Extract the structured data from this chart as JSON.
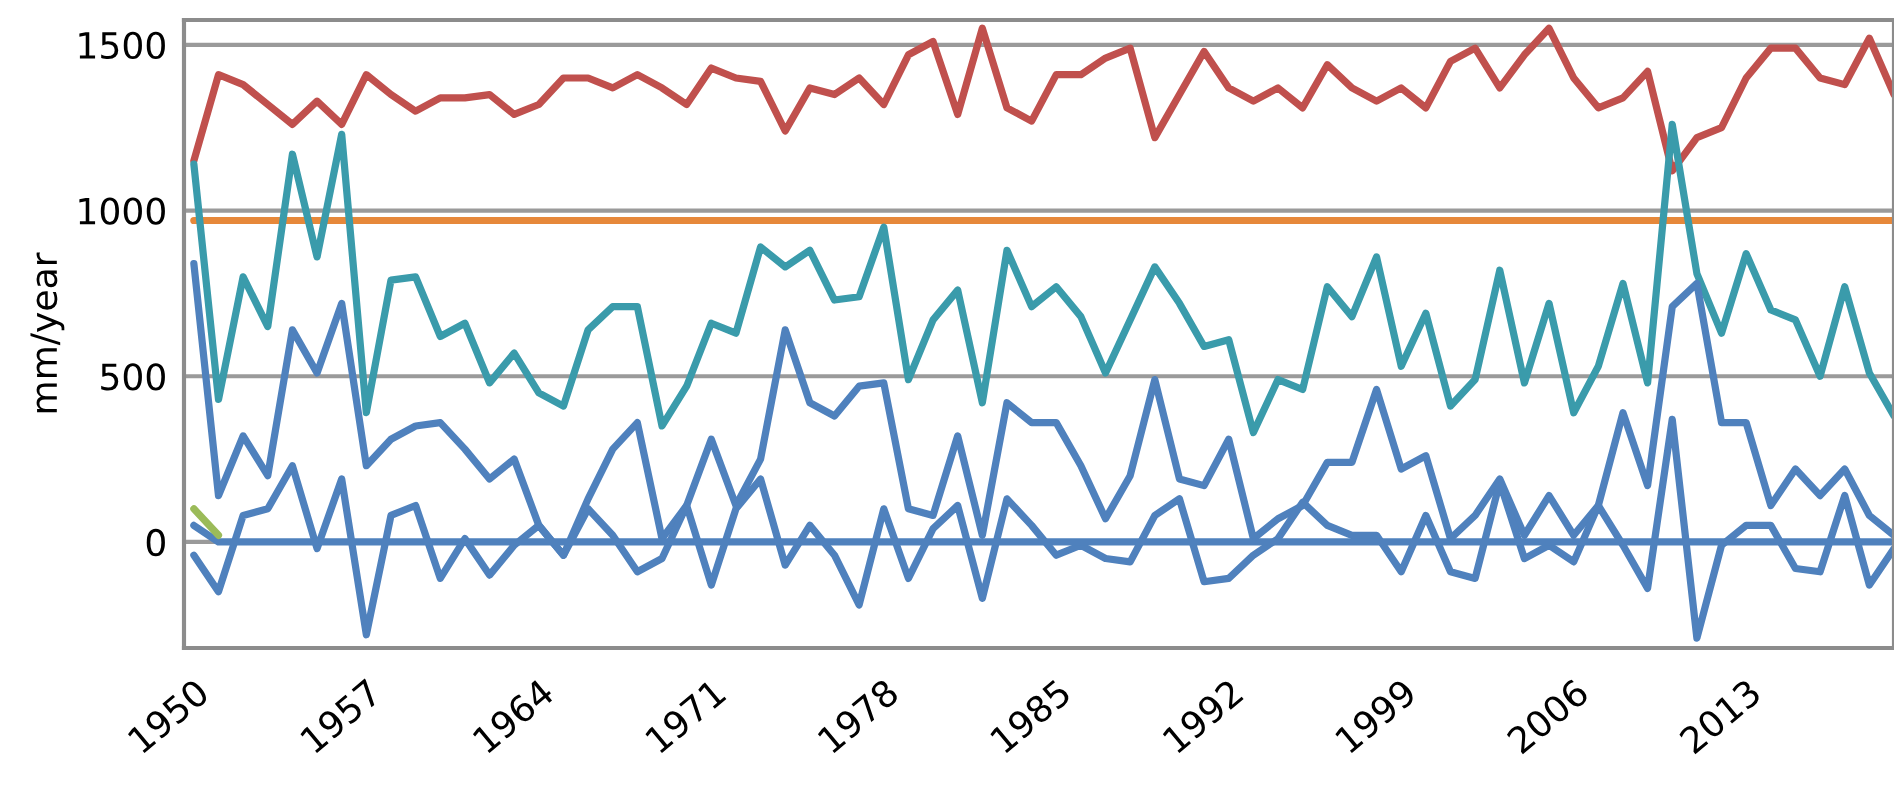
{
  "chart_data": {
    "type": "line",
    "ylabel": "mm/year",
    "x": [
      1950,
      1951,
      1952,
      1953,
      1954,
      1955,
      1956,
      1957,
      1958,
      1959,
      1960,
      1961,
      1962,
      1963,
      1964,
      1965,
      1966,
      1967,
      1968,
      1969,
      1970,
      1971,
      1972,
      1973,
      1974,
      1975,
      1976,
      1977,
      1978,
      1979,
      1980,
      1981,
      1982,
      1983,
      1984,
      1985,
      1986,
      1987,
      1988,
      1989,
      1990,
      1991,
      1992,
      1993,
      1994,
      1995,
      1996,
      1997,
      1998,
      1999,
      2000,
      2001,
      2002,
      2003,
      2004,
      2005,
      2006,
      2007,
      2008,
      2009,
      2010,
      2011,
      2012,
      2013,
      2014,
      2015,
      2016,
      2017,
      2018,
      2019
    ],
    "series": [
      {
        "color": "#c0504d",
        "values": [
          1150,
          1410,
          1380,
          1320,
          1260,
          1330,
          1260,
          1410,
          1350,
          1300,
          1340,
          1340,
          1350,
          1290,
          1320,
          1400,
          1400,
          1370,
          1410,
          1370,
          1320,
          1430,
          1400,
          1390,
          1240,
          1370,
          1350,
          1400,
          1320,
          1470,
          1510,
          1290,
          1550,
          1310,
          1270,
          1410,
          1410,
          1460,
          1490,
          1220,
          1350,
          1480,
          1370,
          1330,
          1370,
          1310,
          1440,
          1370,
          1330,
          1370,
          1310,
          1450,
          1490,
          1370,
          1470,
          1550,
          1400,
          1310,
          1340,
          1420,
          1120,
          1220,
          1250,
          1400,
          1490,
          1490,
          1400,
          1380,
          1520,
          1350
        ]
      },
      {
        "color": "#e6883a",
        "values": [
          970,
          970,
          970,
          970,
          970,
          970,
          970,
          970,
          970,
          970,
          970,
          970,
          970,
          970,
          970,
          970,
          970,
          970,
          970,
          970,
          970,
          970,
          970,
          970,
          970,
          970,
          970,
          970,
          970,
          970,
          970,
          970,
          970,
          970,
          970,
          970,
          970,
          970,
          970,
          970,
          970,
          970,
          970,
          970,
          970,
          970,
          970,
          970,
          970,
          970,
          970,
          970,
          970,
          970,
          970,
          970,
          970,
          970,
          970,
          970,
          970,
          970,
          970,
          970,
          970,
          970,
          970,
          970,
          970,
          970
        ]
      },
      {
        "color": "#3a9bab",
        "values": [
          1140,
          430,
          800,
          650,
          1170,
          860,
          1230,
          390,
          790,
          800,
          620,
          660,
          480,
          570,
          450,
          410,
          640,
          710,
          710,
          350,
          470,
          660,
          630,
          890,
          830,
          880,
          730,
          740,
          950,
          490,
          670,
          760,
          420,
          880,
          710,
          770,
          680,
          510,
          670,
          830,
          720,
          590,
          610,
          330,
          490,
          460,
          770,
          680,
          860,
          530,
          690,
          410,
          490,
          820,
          480,
          720,
          390,
          530,
          780,
          480,
          1260,
          810,
          630,
          870,
          700,
          670,
          500,
          770,
          510,
          380
        ]
      },
      {
        "color": "#4f81bd",
        "values": [
          840,
          140,
          320,
          200,
          640,
          510,
          720,
          230,
          310,
          350,
          360,
          280,
          190,
          250,
          50,
          -40,
          130,
          280,
          360,
          10,
          110,
          310,
          110,
          250,
          640,
          420,
          380,
          470,
          480,
          100,
          80,
          320,
          20,
          420,
          360,
          360,
          230,
          70,
          200,
          490,
          190,
          170,
          310,
          10,
          70,
          110,
          240,
          240,
          460,
          220,
          260,
          10,
          80,
          190,
          20,
          140,
          20,
          110,
          390,
          170,
          710,
          780,
          360,
          360,
          110,
          220,
          140,
          220,
          80,
          20
        ]
      },
      {
        "color": "#4f81bd",
        "values": [
          -40,
          -150,
          80,
          100,
          230,
          -20,
          190,
          -280,
          80,
          110,
          -110,
          10,
          -100,
          -10,
          50,
          -40,
          100,
          20,
          -90,
          -50,
          110,
          -130,
          100,
          190,
          -70,
          50,
          -40,
          -190,
          100,
          -110,
          40,
          110,
          -170,
          130,
          50,
          -40,
          -10,
          -50,
          -60,
          80,
          130,
          -120,
          -110,
          -40,
          10,
          120,
          50,
          20,
          20,
          -90,
          80,
          -90,
          -110,
          180,
          -50,
          -10,
          -60,
          110,
          -10,
          -140,
          370,
          -290,
          -10,
          50,
          50,
          -80,
          -90,
          140,
          -130,
          -20
        ]
      },
      {
        "color": "#4f81bd",
        "values": [
          50,
          0,
          0,
          0,
          0,
          0,
          0,
          0,
          0,
          0,
          0,
          0,
          0,
          0,
          0,
          0,
          0,
          0,
          0,
          0,
          0,
          0,
          0,
          0,
          0,
          0,
          0,
          0,
          0,
          0,
          0,
          0,
          0,
          0,
          0,
          0,
          0,
          0,
          0,
          0,
          0,
          0,
          0,
          0,
          0,
          0,
          0,
          0,
          0,
          0,
          0,
          0,
          0,
          0,
          0,
          0,
          0,
          0,
          0,
          0,
          0,
          0,
          0,
          0,
          0,
          0,
          0,
          0,
          0,
          0
        ]
      },
      {
        "color": "#9bbb59",
        "values": [
          100,
          20,
          null,
          null,
          null,
          null,
          null,
          null,
          null,
          null,
          null,
          null,
          null,
          null,
          null,
          null,
          null,
          null,
          null,
          null,
          null,
          null,
          null,
          null,
          null,
          null,
          null,
          null,
          null,
          null,
          null,
          null,
          null,
          null,
          null,
          null,
          null,
          null,
          null,
          null,
          null,
          null,
          null,
          null,
          null,
          null,
          null,
          null,
          null,
          null,
          null,
          null,
          null,
          null,
          null,
          null,
          null,
          null,
          null,
          null,
          null,
          null,
          null,
          null,
          null,
          null,
          null,
          null,
          null,
          null
        ]
      }
    ],
    "xlim": [
      1949.6,
      2019
    ],
    "xticks": [
      1950,
      1957,
      1964,
      1971,
      1978,
      1985,
      1992,
      1999,
      2006,
      2013
    ],
    "ylim": [
      -320,
      1575
    ],
    "yticks": [
      0,
      500,
      1000,
      1500
    ],
    "grid": "y",
    "marker": "none",
    "line_style": "solid"
  }
}
